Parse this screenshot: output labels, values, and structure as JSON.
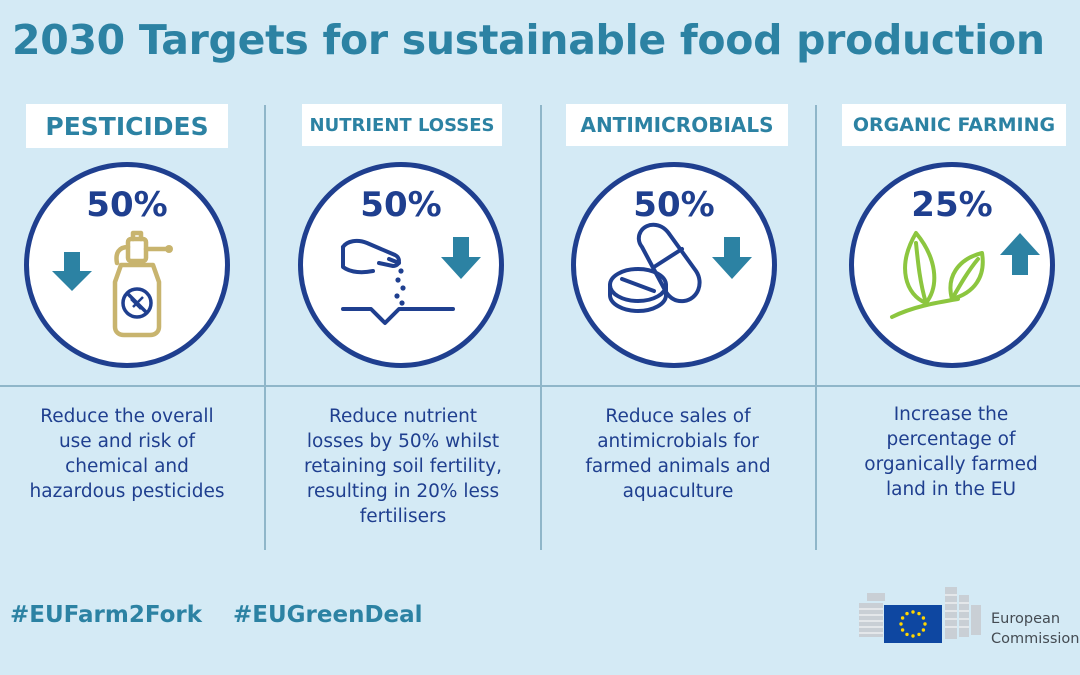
{
  "title": "2030 Targets for sustainable food production",
  "targets": [
    {
      "label": "PESTICIDES",
      "percent": "50%",
      "direction": "down",
      "icon": "pesticide-sprayer-icon",
      "desc_lines": [
        "Reduce the overall",
        "use and risk of",
        "chemical and",
        "hazardous pesticides"
      ]
    },
    {
      "label": "NUTRIENT LOSSES",
      "percent": "50%",
      "direction": "down",
      "icon": "fertiliser-hand-icon",
      "desc_lines": [
        "Reduce nutrient",
        "losses by 50% whilst",
        "retaining soil fertility,",
        "resulting in 20% less",
        "fertilisers"
      ]
    },
    {
      "label": "ANTIMICROBIALS",
      "percent": "50%",
      "direction": "down",
      "icon": "pills-icon",
      "desc_lines": [
        "Reduce sales of",
        "antimicrobials for",
        "farmed animals and",
        "aquaculture"
      ]
    },
    {
      "label": "ORGANIC FARMING",
      "percent": "25%",
      "direction": "up",
      "icon": "leaves-icon",
      "desc_lines": [
        "Increase the",
        "percentage of",
        "organically farmed",
        "land in the EU"
      ]
    }
  ],
  "hashtags": [
    "#EUFarm2Fork",
    "#EUGreenDeal"
  ],
  "logo": {
    "line1": "European",
    "line2": "Commission"
  },
  "colors": {
    "background": "#d4eaf5",
    "teal": "#2c82a3",
    "navy": "#1f3f8f",
    "gold": "#c8b46e",
    "green": "#8cc63f"
  }
}
